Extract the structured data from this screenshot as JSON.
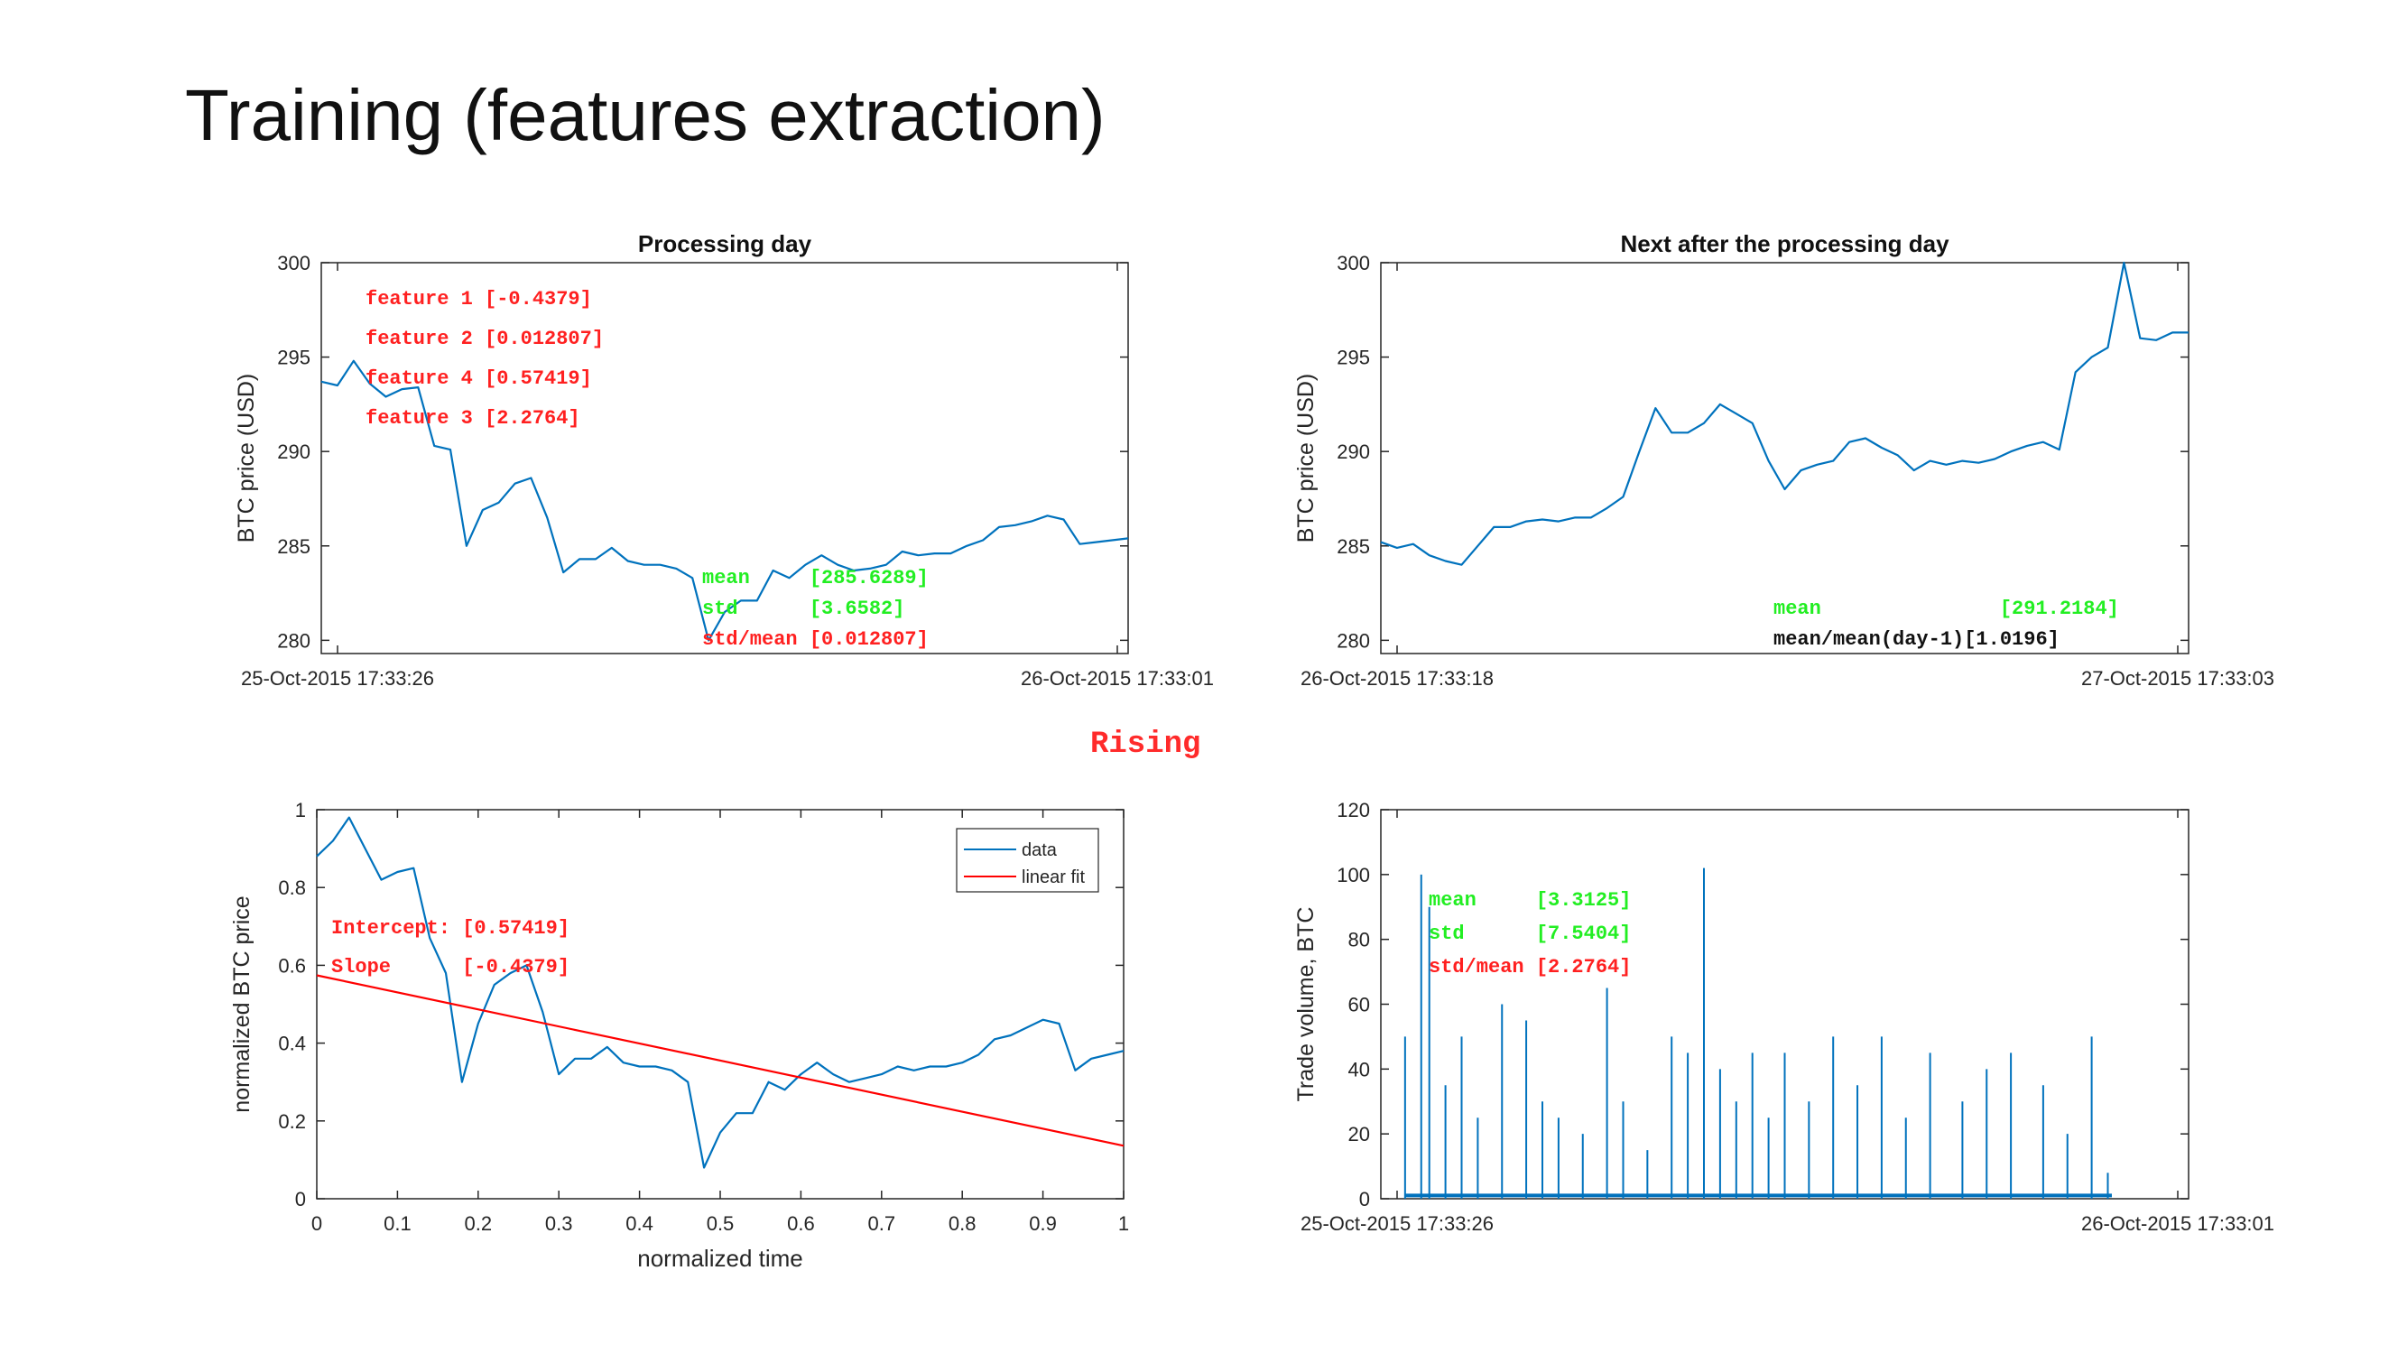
{
  "slide": {
    "title": "Training (features extraction)",
    "status": "Rising"
  },
  "colors": {
    "series": "#0072bd",
    "fit": "#ff0000",
    "red": "#ff2020",
    "green": "#22ee22",
    "black": "#111111"
  },
  "chart_data": [
    {
      "id": "processing",
      "type": "line",
      "title": "Processing day",
      "xlabel": "",
      "ylabel": "BTC price (USD)",
      "ylim": [
        279.3,
        300
      ],
      "yticks": [
        280,
        285,
        290,
        295,
        300
      ],
      "xtick_labels": [
        "25-Oct-2015 17:33:26",
        "26-Oct-2015 17:33:01"
      ],
      "grid": false,
      "x": [
        0.0,
        0.02,
        0.04,
        0.06,
        0.08,
        0.1,
        0.12,
        0.14,
        0.16,
        0.18,
        0.2,
        0.22,
        0.24,
        0.26,
        0.28,
        0.3,
        0.32,
        0.34,
        0.36,
        0.38,
        0.4,
        0.42,
        0.44,
        0.46,
        0.48,
        0.5,
        0.52,
        0.54,
        0.56,
        0.58,
        0.6,
        0.62,
        0.64,
        0.66,
        0.68,
        0.7,
        0.72,
        0.74,
        0.76,
        0.78,
        0.8,
        0.82,
        0.84,
        0.86,
        0.88,
        0.9,
        0.92,
        0.94,
        0.96,
        0.98,
        1.0
      ],
      "y": [
        293.7,
        293.5,
        294.8,
        293.6,
        292.9,
        293.3,
        293.4,
        290.3,
        290.1,
        285.0,
        286.9,
        287.3,
        288.3,
        288.6,
        286.5,
        283.6,
        284.3,
        284.3,
        284.9,
        284.2,
        284.0,
        284.0,
        283.8,
        283.3,
        280.0,
        281.5,
        282.1,
        282.1,
        283.7,
        283.3,
        284.0,
        284.5,
        284.0,
        283.7,
        283.8,
        284.0,
        284.7,
        284.5,
        284.6,
        284.6,
        285.0,
        285.3,
        286.0,
        286.1,
        286.3,
        286.6,
        286.4,
        285.1,
        285.2,
        285.3,
        285.4
      ],
      "annotations": [
        {
          "text": "feature 1 [-0.4379]",
          "color": "red"
        },
        {
          "text": "feature 2 [0.012807]",
          "color": "red"
        },
        {
          "text": "feature 4 [0.57419]",
          "color": "red"
        },
        {
          "text": "feature 3 [2.2764]",
          "color": "red"
        },
        {
          "text": "mean     [285.6289]",
          "color": "green"
        },
        {
          "text": "std      [3.6582]",
          "color": "green"
        },
        {
          "text": "std/mean [0.012807]",
          "color": "red"
        }
      ]
    },
    {
      "id": "next",
      "type": "line",
      "title": "Next after the processing day",
      "xlabel": "",
      "ylabel": "BTC price (USD)",
      "ylim": [
        279.3,
        300
      ],
      "yticks": [
        280,
        285,
        290,
        295,
        300
      ],
      "xtick_labels": [
        "26-Oct-2015 17:33:18",
        "27-Oct-2015 17:33:03"
      ],
      "grid": false,
      "x": [
        0.0,
        0.02,
        0.04,
        0.06,
        0.08,
        0.1,
        0.12,
        0.14,
        0.16,
        0.18,
        0.2,
        0.22,
        0.24,
        0.26,
        0.28,
        0.3,
        0.32,
        0.34,
        0.36,
        0.38,
        0.4,
        0.42,
        0.44,
        0.46,
        0.48,
        0.5,
        0.52,
        0.54,
        0.56,
        0.58,
        0.6,
        0.62,
        0.64,
        0.66,
        0.68,
        0.7,
        0.72,
        0.74,
        0.76,
        0.78,
        0.8,
        0.82,
        0.84,
        0.86,
        0.88,
        0.9,
        0.92,
        0.94,
        0.96,
        0.98,
        1.0
      ],
      "y": [
        285.2,
        284.9,
        285.1,
        284.5,
        284.2,
        284.0,
        285.0,
        286.0,
        286.0,
        286.3,
        286.4,
        286.3,
        286.5,
        286.5,
        287.0,
        287.6,
        290.0,
        292.3,
        291.0,
        291.0,
        291.5,
        292.5,
        292.0,
        291.5,
        289.5,
        288.0,
        289.0,
        289.3,
        289.5,
        290.5,
        290.7,
        290.2,
        289.8,
        289.0,
        289.5,
        289.3,
        289.5,
        289.4,
        289.6,
        290.0,
        290.3,
        290.5,
        290.1,
        294.2,
        295.0,
        295.5,
        300.0,
        296.0,
        295.9,
        296.3,
        296.3
      ],
      "annotations": [
        {
          "text": "mean               [291.2184]",
          "color": "green"
        },
        {
          "text": "mean/mean(day-1)[1.0196]",
          "color": "black"
        }
      ]
    },
    {
      "id": "normalized",
      "type": "line",
      "title": "",
      "xlabel": "normalized time",
      "ylabel": "normalized BTC price",
      "xlim": [
        0,
        1
      ],
      "ylim": [
        0,
        1
      ],
      "xticks": [
        0,
        0.1,
        0.2,
        0.3,
        0.4,
        0.5,
        0.6,
        0.7,
        0.8,
        0.9,
        1
      ],
      "xtick_labels": [
        "0",
        "0.1",
        "0.2",
        "0.3",
        "0.4",
        "0.5",
        "0.6",
        "0.7",
        "0.8",
        "0.9",
        "1"
      ],
      "yticks": [
        0,
        0.2,
        0.4,
        0.6,
        0.8,
        1
      ],
      "ytick_labels": [
        "0",
        "0.2",
        "0.4",
        "0.6",
        "0.8",
        "1"
      ],
      "grid": false,
      "legend": {
        "placement": "top-right",
        "entries": [
          "data",
          "linear fit"
        ]
      },
      "series": [
        {
          "name": "data",
          "x": [
            0.0,
            0.02,
            0.04,
            0.06,
            0.08,
            0.1,
            0.12,
            0.14,
            0.16,
            0.18,
            0.2,
            0.22,
            0.24,
            0.26,
            0.28,
            0.3,
            0.32,
            0.34,
            0.36,
            0.38,
            0.4,
            0.42,
            0.44,
            0.46,
            0.48,
            0.5,
            0.52,
            0.54,
            0.56,
            0.58,
            0.6,
            0.62,
            0.64,
            0.66,
            0.68,
            0.7,
            0.72,
            0.74,
            0.76,
            0.78,
            0.8,
            0.82,
            0.84,
            0.86,
            0.88,
            0.9,
            0.92,
            0.94,
            0.96,
            0.98,
            1.0
          ],
          "y": [
            0.88,
            0.92,
            0.98,
            0.9,
            0.82,
            0.84,
            0.85,
            0.67,
            0.58,
            0.3,
            0.45,
            0.55,
            0.58,
            0.6,
            0.48,
            0.32,
            0.36,
            0.36,
            0.39,
            0.35,
            0.34,
            0.34,
            0.33,
            0.3,
            0.08,
            0.17,
            0.22,
            0.22,
            0.3,
            0.28,
            0.32,
            0.35,
            0.32,
            0.3,
            0.31,
            0.32,
            0.34,
            0.33,
            0.34,
            0.34,
            0.35,
            0.37,
            0.41,
            0.42,
            0.44,
            0.46,
            0.45,
            0.33,
            0.36,
            0.37,
            0.38
          ]
        },
        {
          "name": "linear fit",
          "x": [
            0,
            1
          ],
          "y": [
            0.57419,
            0.13629
          ]
        }
      ],
      "annotations": [
        {
          "text": "Intercept: [0.57419]",
          "color": "red"
        },
        {
          "text": "Slope      [-0.4379]",
          "color": "red"
        }
      ]
    },
    {
      "id": "volume",
      "type": "bar",
      "title": "",
      "xlabel": "",
      "ylabel": "Trade volume, BTC",
      "ylim": [
        0,
        120
      ],
      "yticks": [
        0,
        20,
        40,
        60,
        80,
        100,
        120
      ],
      "xtick_labels": [
        "25-Oct-2015 17:33:26",
        "26-Oct-2015 17:33:01"
      ],
      "grid": false,
      "x": [
        0.03,
        0.05,
        0.06,
        0.08,
        0.1,
        0.12,
        0.15,
        0.18,
        0.2,
        0.22,
        0.25,
        0.28,
        0.3,
        0.33,
        0.36,
        0.38,
        0.4,
        0.42,
        0.44,
        0.46,
        0.48,
        0.5,
        0.53,
        0.56,
        0.59,
        0.62,
        0.65,
        0.68,
        0.72,
        0.75,
        0.78,
        0.82,
        0.85,
        0.88,
        0.9
      ],
      "values": [
        50,
        100,
        90,
        35,
        50,
        25,
        60,
        55,
        30,
        25,
        20,
        65,
        30,
        15,
        50,
        45,
        102,
        40,
        30,
        45,
        25,
        45,
        30,
        50,
        35,
        50,
        25,
        45,
        30,
        40,
        45,
        35,
        20,
        50,
        8
      ],
      "annotations": [
        {
          "text": "mean     [3.3125]",
          "color": "green"
        },
        {
          "text": "std      [7.5404]",
          "color": "green"
        },
        {
          "text": "std/mean [2.2764]",
          "color": "red"
        }
      ]
    }
  ]
}
